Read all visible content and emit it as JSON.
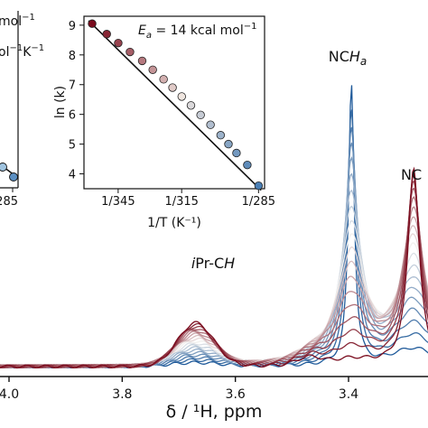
{
  "chart_data": [
    {
      "type": "line",
      "panel": "nmr-spectrum",
      "xlabel": "δ / ¹H, ppm",
      "x_reversed": true,
      "xlim": [
        4.1,
        3.26
      ],
      "ylim": [
        0,
        1
      ],
      "x_ticks": [
        {
          "value": 4.0,
          "label": "4.0"
        },
        {
          "value": 3.8,
          "label": "3.8"
        },
        {
          "value": 3.6,
          "label": "3.6"
        },
        {
          "value": 3.4,
          "label": "3.4"
        }
      ],
      "peak_labels": [
        {
          "id": "ncha",
          "main": "NC",
          "italic": "H",
          "sub": "a",
          "x": 3.395,
          "y": 0.8
        },
        {
          "id": "ipr",
          "main": "",
          "italic": "i",
          "rest": "Pr-C",
          "italic2": "H",
          "x": 3.69,
          "y": 0.33
        },
        {
          "id": "nc",
          "main": "NC",
          "x": 3.31,
          "y": 0.57
        }
      ],
      "series_count": 19,
      "series_params": {
        "temperature_fraction_start": 0.0,
        "temperature_fraction_end": 1.0,
        "peak_ncha": {
          "center": 3.395,
          "height_start": 0.78,
          "height_end": 0.02,
          "width_start": 0.006,
          "width_end": 0.05
        },
        "peak_nchb": {
          "center": 3.285,
          "height_start": 0.05,
          "height_end": 0.55,
          "width_start": 0.05,
          "width_end": 0.012
        },
        "peak_ipr": {
          "center": 3.67,
          "height_start": 0.01,
          "height_end": 0.12,
          "width_start": 0.06,
          "width_end": 0.045
        },
        "baseline": 0.015
      },
      "colors": {
        "cold": "#1f5a9a",
        "mid": "#f2f0ee",
        "hot": "#7a0c1e"
      }
    },
    {
      "type": "scatter",
      "panel": "arrhenius-inset",
      "annotation": {
        "prefix": "E",
        "sub": "a",
        "suffix": " = 14 kcal mol",
        "sup": "−1"
      },
      "xlabel": "1/T (K⁻¹)",
      "ylabel": "ln (k)",
      "xlim": [
        0.00275,
        0.003535
      ],
      "ylim": [
        3.5,
        9.3
      ],
      "x_ticks": [
        {
          "value": 0.0028986,
          "label": "1/345"
        },
        {
          "value": 0.0031746,
          "label": "1/315"
        },
        {
          "value": 0.0035088,
          "label": "1/285"
        }
      ],
      "y_ticks": [
        {
          "value": 4,
          "label": "4"
        },
        {
          "value": 5,
          "label": "5"
        },
        {
          "value": 6,
          "label": "6"
        },
        {
          "value": 7,
          "label": "7"
        },
        {
          "value": 8,
          "label": "8"
        },
        {
          "value": 9,
          "label": "9"
        }
      ],
      "x": [
        0.0027855,
        0.002849,
        0.002899,
        0.00295,
        0.003003,
        0.003049,
        0.003096,
        0.003135,
        0.003175,
        0.003215,
        0.003257,
        0.0033,
        0.003344,
        0.003378,
        0.003413,
        0.00346,
        0.003509
      ],
      "y": [
        9.05,
        8.7,
        8.4,
        8.1,
        7.8,
        7.5,
        7.18,
        6.9,
        6.6,
        6.3,
        5.98,
        5.65,
        5.3,
        5.0,
        4.7,
        4.3,
        3.6
      ],
      "fit_line": {
        "x": [
          0.00277,
          0.00352
        ],
        "y": [
          9.15,
          3.45
        ]
      },
      "colors": {
        "cold": "#4a7fb5",
        "mid": "#f0e6e0",
        "hot": "#7a0c1e",
        "line": "#111111"
      }
    },
    {
      "type": "scatter",
      "panel": "left-inset-partial",
      "text_lines": [
        {
          "text": "mol",
          "sup": "−1"
        },
        {
          "text": "ol",
          "sup": "−1",
          "suffix": "K",
          "sup2": "−1"
        }
      ],
      "x_ticks": [
        {
          "label": "/285"
        }
      ],
      "points": [
        {
          "x": 0.92,
          "y": 0.36
        },
        {
          "x": 0.98,
          "y": 0.29
        }
      ]
    }
  ]
}
